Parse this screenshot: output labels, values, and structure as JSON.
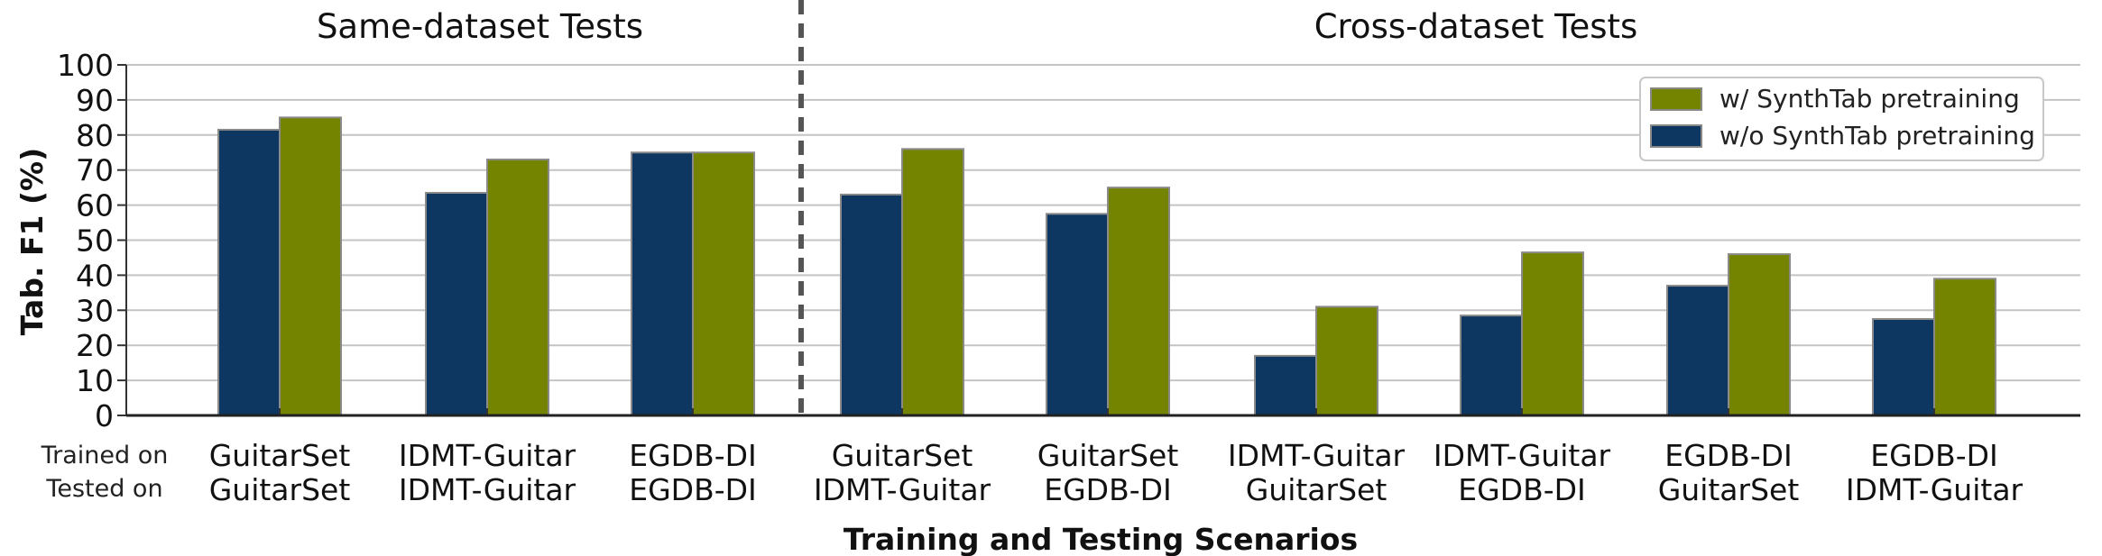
{
  "chart_data": {
    "type": "bar",
    "section_titles": [
      "Same-dataset Tests",
      "Cross-dataset Tests"
    ],
    "row_labels": [
      "Trained on",
      "Tested on"
    ],
    "categories": [
      {
        "trained_on": "GuitarSet",
        "tested_on": "GuitarSet"
      },
      {
        "trained_on": "IDMT-Guitar",
        "tested_on": "IDMT-Guitar"
      },
      {
        "trained_on": "EGDB-DI",
        "tested_on": "EGDB-DI"
      },
      {
        "trained_on": "GuitarSet",
        "tested_on": "IDMT-Guitar"
      },
      {
        "trained_on": "GuitarSet",
        "tested_on": "EGDB-DI"
      },
      {
        "trained_on": "IDMT-Guitar",
        "tested_on": "GuitarSet"
      },
      {
        "trained_on": "IDMT-Guitar",
        "tested_on": "EGDB-DI"
      },
      {
        "trained_on": "EGDB-DI",
        "tested_on": "GuitarSet"
      },
      {
        "trained_on": "EGDB-DI",
        "tested_on": "IDMT-Guitar"
      }
    ],
    "series": [
      {
        "name": "w/o SynthTab pretraining",
        "color": "#0d3660",
        "values": [
          81.5,
          63.5,
          75.0,
          63.0,
          57.5,
          17.0,
          28.5,
          37.0,
          27.5
        ]
      },
      {
        "name": "w/ SynthTab pretraining",
        "color": "#748400",
        "values": [
          85.0,
          73.0,
          75.0,
          76.0,
          65.0,
          31.0,
          46.5,
          46.0,
          39.0
        ]
      }
    ],
    "legend_order": [
      "w/ SynthTab pretraining",
      "w/o SynthTab pretraining"
    ],
    "legend_position": "top-right",
    "ylabel": "Tab. F1 (%)",
    "xlabel": "Training and Testing Scenarios",
    "ylim": [
      0,
      100
    ],
    "yticks": [
      0,
      10,
      20,
      30,
      40,
      50,
      60,
      70,
      80,
      90,
      100
    ],
    "grid": "horizontal",
    "divider_after_category": 2
  }
}
